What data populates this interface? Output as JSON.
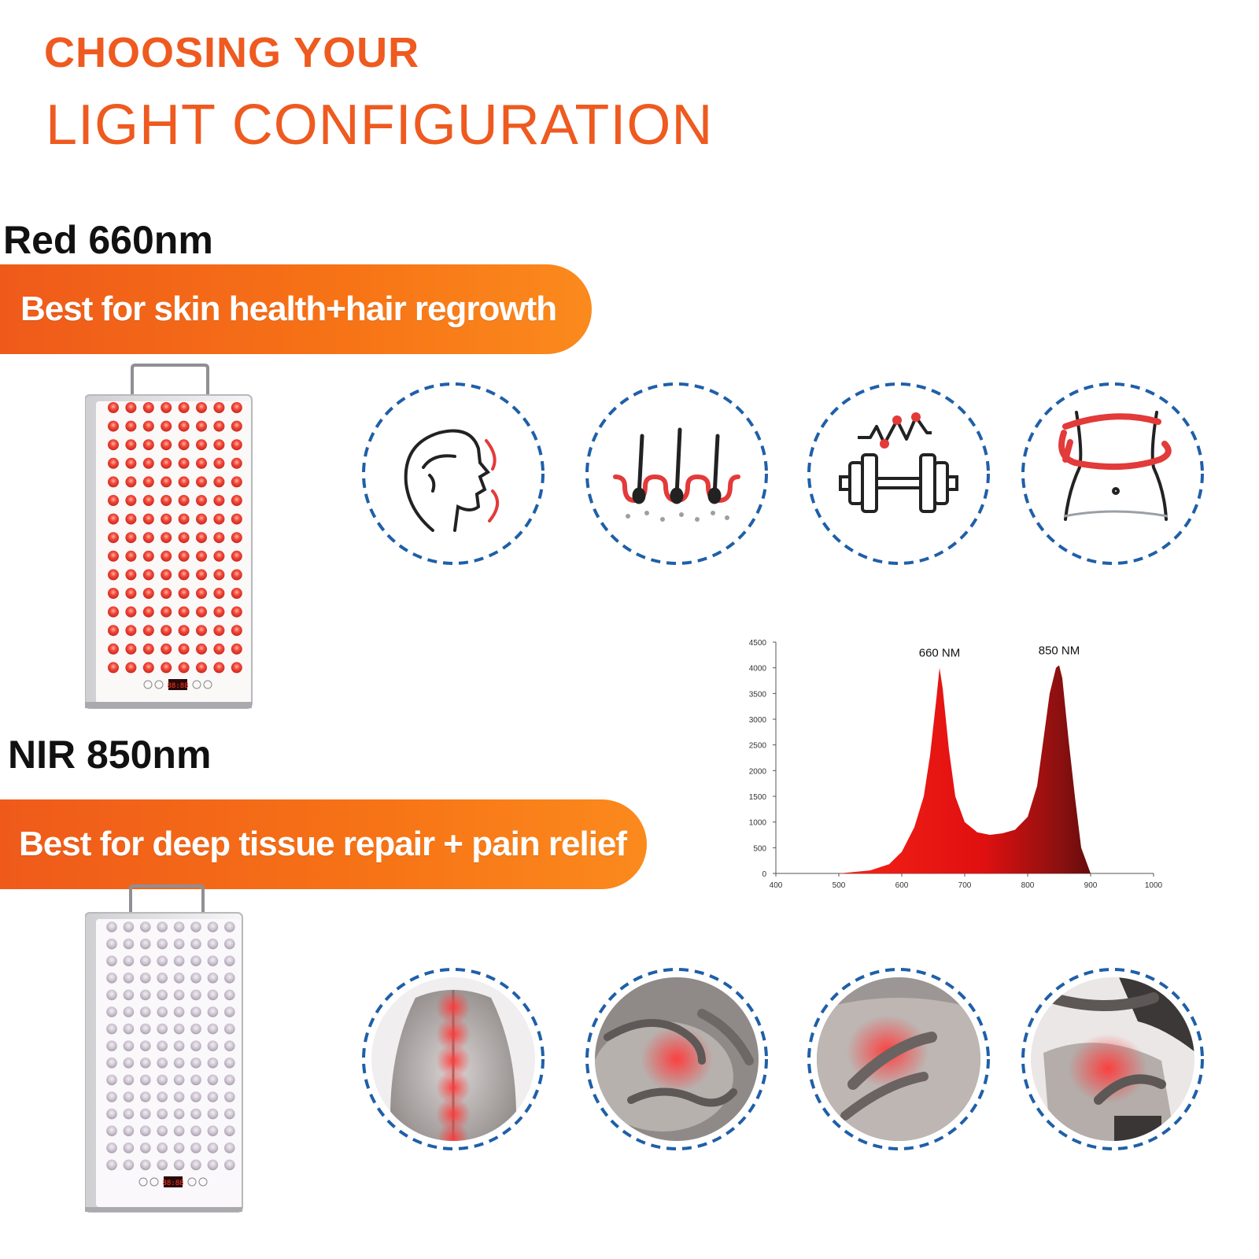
{
  "heading": {
    "line1": "CHOOSING YOUR",
    "line2": "LIGHT CONFIGURATION"
  },
  "red_section": {
    "label": "Red 660nm",
    "banner": "Best for skin health+hair regrowth",
    "panel_display": "88:88",
    "icons": [
      "face-skin-icon",
      "hair-follicle-icon",
      "dumbbell-fitness-icon",
      "waist-slimming-icon"
    ]
  },
  "nir_section": {
    "label": "NIR 850nm",
    "banner": "Best for deep tissue repair + pain relief",
    "panel_display": "88:88",
    "photos": [
      "spine-back-pain",
      "knee-pain",
      "chest-pain",
      "neck-shoulder-pain"
    ]
  },
  "colors": {
    "accent": "#ee5a1f",
    "banner_start": "#ef5a1a",
    "banner_end": "#fb8a1d",
    "led_red": "#f04a3c",
    "led_nir": "#c9c2cc",
    "circle_dash": "#1f5fa8"
  },
  "chart_data": {
    "type": "area",
    "x_ticks": [
      400,
      500,
      600,
      700,
      800,
      900,
      1000
    ],
    "y_ticks": [
      0,
      500,
      1000,
      1500,
      2000,
      2500,
      3000,
      3500,
      4000,
      4500
    ],
    "xlim": [
      400,
      1000
    ],
    "ylim": [
      0,
      4500
    ],
    "annotations": [
      {
        "text": "660 NM",
        "x": 660,
        "y": 4000
      },
      {
        "text": "850 NM",
        "x": 850,
        "y": 4050
      }
    ],
    "series": [
      {
        "x": [
          400,
          500,
          550,
          580,
          600,
          620,
          635,
          645,
          655,
          660,
          665,
          675,
          685,
          700,
          720,
          740,
          760,
          780,
          800,
          815,
          825,
          835,
          845,
          850,
          855,
          865,
          875,
          885,
          900,
          1000
        ],
        "y": [
          0,
          0,
          60,
          180,
          420,
          900,
          1500,
          2300,
          3400,
          4000,
          3600,
          2400,
          1500,
          1000,
          800,
          750,
          780,
          850,
          1100,
          1700,
          2600,
          3500,
          4000,
          4050,
          3800,
          2600,
          1500,
          500,
          0,
          0
        ]
      }
    ],
    "grid": false,
    "fill_gradient": [
      "#e01010",
      "#8c1010",
      "#1a0505"
    ]
  }
}
